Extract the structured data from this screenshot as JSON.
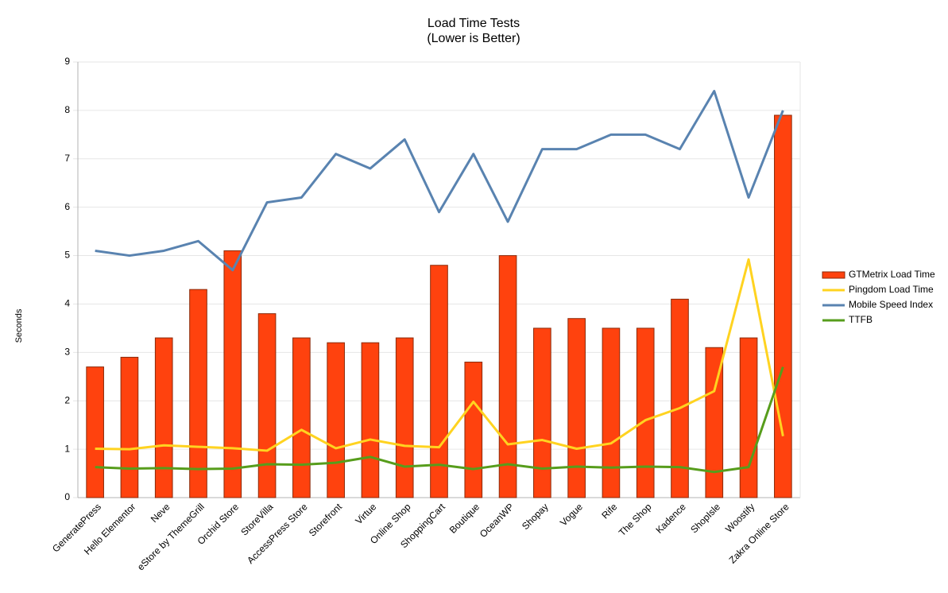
{
  "chart_data": {
    "type": "bar",
    "title": "Load Time Tests",
    "subtitle": "(Lower is Better)",
    "y_label": "Seconds",
    "categories": [
      "GeneratePress",
      "Hello Elementor",
      "Neve",
      "eStore by ThemeGrill",
      "Orchid Store",
      "StoreVilla",
      "AccessPress Store",
      "Storefront",
      "Virtue",
      "Online Shop",
      "ShoppingCart",
      "Boutique",
      "OceanWP",
      "Shopay",
      "Vogue",
      "Rife",
      "The Shop",
      "Kadence",
      "ShopIsle",
      "Woostify",
      "Zakra Online Store"
    ],
    "series": [
      {
        "name": "GTMetrix Load Time",
        "type": "bar",
        "color": "#ff420e",
        "values": [
          2.7,
          2.9,
          3.3,
          4.3,
          5.1,
          3.8,
          3.3,
          3.2,
          3.2,
          3.3,
          4.8,
          2.8,
          5.0,
          3.5,
          3.7,
          3.5,
          3.5,
          4.1,
          3.1,
          3.3,
          7.9
        ]
      },
      {
        "name": "Pingdom Load Time",
        "type": "line",
        "color": "#ffd320",
        "values": [
          1.01,
          1.0,
          1.08,
          1.05,
          1.02,
          0.97,
          1.4,
          1.02,
          1.2,
          1.07,
          1.04,
          1.98,
          1.1,
          1.19,
          1.01,
          1.12,
          1.6,
          1.85,
          2.2,
          4.92,
          1.27
        ]
      },
      {
        "name": "Mobile Speed Index",
        "type": "line",
        "color": "#5983b0",
        "values": [
          5.1,
          5.0,
          5.1,
          5.3,
          4.7,
          6.1,
          6.2,
          7.1,
          6.8,
          7.4,
          5.9,
          7.1,
          5.7,
          7.2,
          7.2,
          7.5,
          7.5,
          7.2,
          8.4,
          6.2,
          8.0
        ]
      },
      {
        "name": "TTFB",
        "type": "line",
        "color": "#579d1c",
        "values": [
          0.63,
          0.6,
          0.61,
          0.59,
          0.6,
          0.69,
          0.68,
          0.72,
          0.84,
          0.64,
          0.68,
          0.59,
          0.69,
          0.6,
          0.64,
          0.62,
          0.64,
          0.63,
          0.53,
          0.63,
          2.7
        ]
      }
    ],
    "ylim": [
      0,
      9
    ],
    "yticks": [
      0,
      1,
      2,
      3,
      4,
      5,
      6,
      7,
      8,
      9
    ],
    "grid": true,
    "legend": "right"
  }
}
